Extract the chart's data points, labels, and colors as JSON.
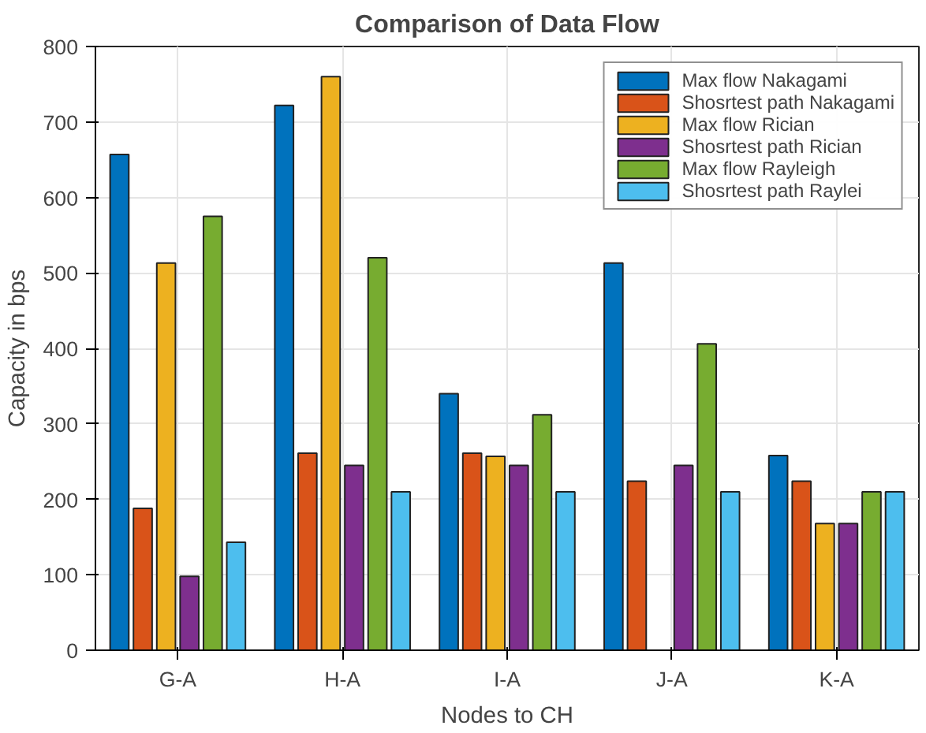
{
  "chart_data": {
    "type": "bar",
    "title": "Comparison of Data Flow",
    "xlabel": "Nodes to CH",
    "ylabel": "Capacity in bps",
    "categories": [
      "G-A",
      "H-A",
      "I-A",
      "J-A",
      "K-A"
    ],
    "series": [
      {
        "name": "Max flow Nakagami",
        "color": "#0072bd",
        "values": [
          657,
          722,
          340,
          513,
          258
        ]
      },
      {
        "name": "Shosrtest path Nakagami",
        "color": "#d95319",
        "values": [
          188,
          261,
          261,
          224,
          224
        ]
      },
      {
        "name": "Max flow Rician",
        "color": "#edb120",
        "values": [
          513,
          760,
          257,
          null,
          168
        ]
      },
      {
        "name": "Shosrtest path Rician",
        "color": "#7e2f8e",
        "values": [
          98,
          245,
          245,
          245,
          168
        ]
      },
      {
        "name": "Max flow Rayleigh",
        "color": "#77ac30",
        "values": [
          575,
          520,
          312,
          406,
          210
        ]
      },
      {
        "name": "Shosrtest path Raylei",
        "color": "#4dbeee",
        "values": [
          143,
          210,
          210,
          210,
          210
        ]
      }
    ],
    "ylim": [
      0,
      800
    ],
    "yticks": [
      0,
      100,
      200,
      300,
      400,
      500,
      600,
      700,
      800
    ],
    "grid": true,
    "legend": "top right"
  }
}
